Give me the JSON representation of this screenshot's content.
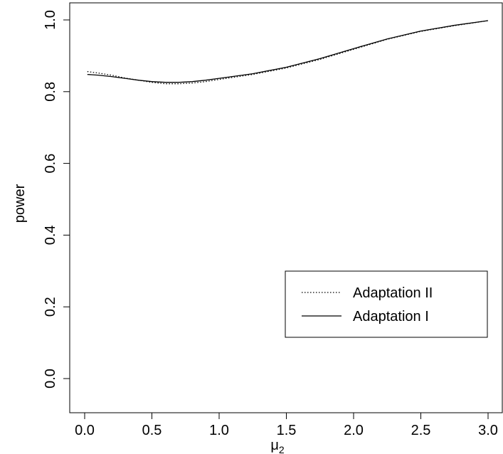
{
  "chart_data": {
    "type": "line",
    "title": "",
    "xlabel": "μ",
    "xlabel_subscript": "2",
    "ylabel": "power",
    "xlim": [
      0.0,
      3.0
    ],
    "ylim": [
      0.0,
      1.0
    ],
    "x_ticks": [
      "0.0",
      "0.5",
      "1.0",
      "1.5",
      "2.0",
      "2.5",
      "3.0"
    ],
    "y_ticks": [
      "0.0",
      "0.2",
      "0.4",
      "0.6",
      "0.8",
      "1.0"
    ],
    "grid": false,
    "legend_position": "bottom-right",
    "series": [
      {
        "name": "Adaptation II",
        "line_style": "dotted",
        "color": "#000000",
        "x": [
          0.02,
          0.1,
          0.2,
          0.3,
          0.4,
          0.5,
          0.6,
          0.7,
          0.8,
          0.9,
          1.0,
          1.25,
          1.5,
          1.75,
          2.0,
          2.25,
          2.5,
          2.75,
          3.0
        ],
        "y": [
          0.856,
          0.852,
          0.846,
          0.838,
          0.832,
          0.826,
          0.822,
          0.822,
          0.824,
          0.828,
          0.834,
          0.848,
          0.866,
          0.89,
          0.918,
          0.946,
          0.968,
          0.984,
          0.998
        ]
      },
      {
        "name": "Adaptation I",
        "line_style": "solid",
        "color": "#000000",
        "x": [
          0.02,
          0.1,
          0.2,
          0.3,
          0.4,
          0.5,
          0.6,
          0.7,
          0.8,
          0.9,
          1.0,
          1.25,
          1.5,
          1.75,
          2.0,
          2.25,
          2.5,
          2.75,
          3.0
        ],
        "y": [
          0.848,
          0.846,
          0.842,
          0.837,
          0.832,
          0.828,
          0.826,
          0.826,
          0.828,
          0.832,
          0.837,
          0.85,
          0.868,
          0.892,
          0.92,
          0.947,
          0.969,
          0.985,
          0.998
        ]
      }
    ]
  }
}
